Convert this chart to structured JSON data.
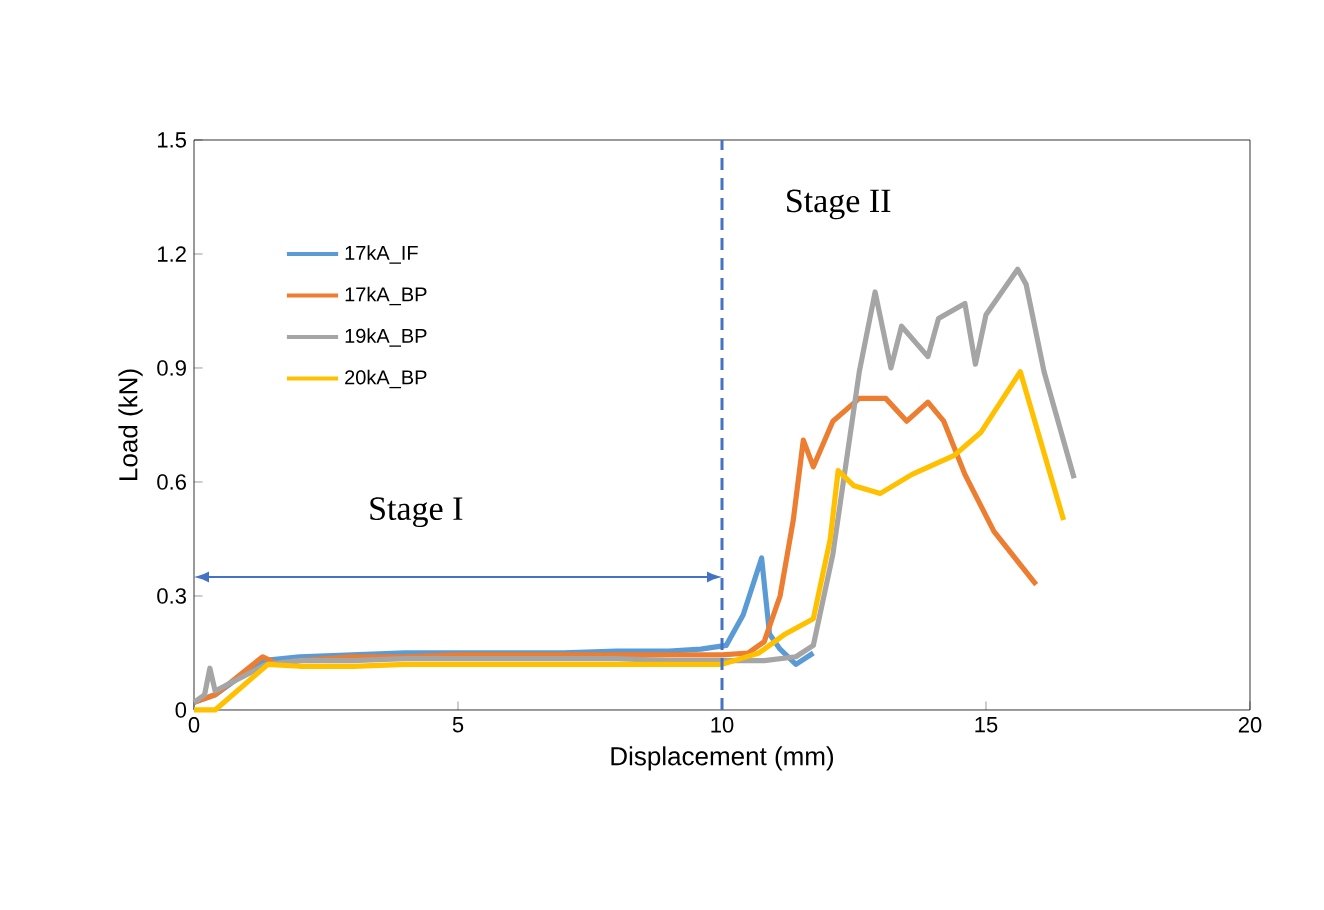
{
  "chart_data": {
    "type": "line",
    "xlabel": "Displacement (mm)",
    "ylabel": "Load (kN)",
    "xlim": [
      0,
      20
    ],
    "ylim": [
      0,
      1.5
    ],
    "xticks": [
      0,
      5,
      10,
      15,
      20
    ],
    "yticks": [
      0,
      0.3,
      0.6,
      0.9,
      1.2,
      1.5
    ],
    "legend": "top left",
    "grid": false,
    "line_style": "solid",
    "marker": "none",
    "series": [
      {
        "name": "17kA_IF",
        "color": "#5b9bd5",
        "x": [
          0,
          0.4,
          1.3,
          2,
          3,
          4,
          5,
          6,
          7,
          8,
          9,
          9.6,
          10.08,
          10.4,
          10.75,
          10.9,
          11.1,
          11.4,
          11.73
        ],
        "values": [
          0.02,
          0.04,
          0.13,
          0.14,
          0.145,
          0.15,
          0.15,
          0.15,
          0.15,
          0.155,
          0.155,
          0.16,
          0.17,
          0.25,
          0.4,
          0.2,
          0.16,
          0.12,
          0.15
        ]
      },
      {
        "name": "17kA_BP",
        "color": "#ed7d31",
        "x": [
          0,
          0.4,
          1.3,
          1.6,
          2,
          3,
          4,
          5,
          6,
          7,
          8,
          9,
          10,
          10.5,
          10.8,
          11.1,
          11.35,
          11.54,
          11.73,
          12.1,
          12.6,
          13.1,
          13.5,
          13.9,
          14.2,
          14.6,
          15.15,
          15.95
        ],
        "values": [
          0.02,
          0.04,
          0.14,
          0.12,
          0.13,
          0.14,
          0.14,
          0.145,
          0.145,
          0.145,
          0.145,
          0.145,
          0.145,
          0.15,
          0.18,
          0.3,
          0.5,
          0.71,
          0.64,
          0.76,
          0.82,
          0.82,
          0.76,
          0.81,
          0.76,
          0.62,
          0.47,
          0.33
        ]
      },
      {
        "name": "19kA_BP",
        "color": "#a5a5a5",
        "x": [
          0,
          0.2,
          0.3,
          0.4,
          1.37,
          2,
          3,
          4,
          5,
          6,
          7,
          8,
          9,
          10,
          10.8,
          11.4,
          11.73,
          12.1,
          12.6,
          12.9,
          13.2,
          13.4,
          13.9,
          14.1,
          14.6,
          14.8,
          15.0,
          15.6,
          15.76,
          16.1,
          16.67
        ],
        "values": [
          0.02,
          0.04,
          0.11,
          0.05,
          0.12,
          0.13,
          0.13,
          0.135,
          0.135,
          0.135,
          0.135,
          0.135,
          0.13,
          0.13,
          0.13,
          0.14,
          0.17,
          0.41,
          0.89,
          1.1,
          0.9,
          1.01,
          0.93,
          1.03,
          1.07,
          0.91,
          1.04,
          1.16,
          1.12,
          0.89,
          0.61
        ]
      },
      {
        "name": "20kA_BP",
        "color": "#ffc000",
        "x": [
          0,
          0.4,
          1.4,
          2,
          3,
          4,
          5,
          6,
          7,
          8,
          9,
          10,
          10.7,
          11.2,
          11.73,
          12.05,
          12.2,
          12.5,
          13.0,
          13.6,
          14.4,
          14.9,
          15.65,
          16.47
        ],
        "values": [
          0.0,
          0.0,
          0.12,
          0.115,
          0.115,
          0.12,
          0.12,
          0.12,
          0.12,
          0.12,
          0.12,
          0.12,
          0.15,
          0.2,
          0.24,
          0.45,
          0.63,
          0.59,
          0.57,
          0.62,
          0.67,
          0.73,
          0.89,
          0.5
        ]
      }
    ],
    "ref_lines": [
      {
        "axis": "x",
        "value": 10,
        "color": "#4472c4",
        "line_style": "dashed"
      }
    ],
    "annotations": [
      "Stage I",
      "Stage II"
    ]
  }
}
